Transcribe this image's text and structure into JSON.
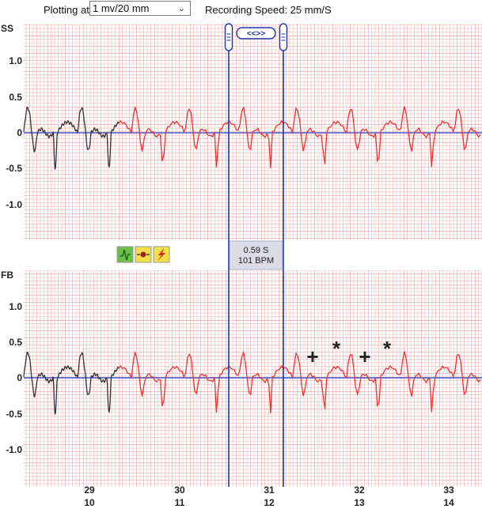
{
  "toolbar": {
    "plotting_label": "Plotting at:",
    "plotting_value": "1 mv/20 mm",
    "speed_label": "Recording Speed: 25 mm/S"
  },
  "leads": [
    {
      "name": "SS",
      "ticks": [
        "1.0",
        "0.5",
        "0",
        "-0.5",
        "-1.0"
      ]
    },
    {
      "name": "FB",
      "ticks": [
        "1.0",
        "0.5",
        "0",
        "-0.5",
        "-1.0"
      ]
    }
  ],
  "caliper": {
    "button_label": "<<>>",
    "interval": "0.59 S",
    "rate": "101 BPM"
  },
  "time_axis": {
    "seconds": [
      "29",
      "30",
      "31",
      "32",
      "33"
    ],
    "beats": [
      "10",
      "11",
      "12",
      "13",
      "14"
    ]
  },
  "annotations": [
    "+",
    "*",
    "+",
    "*"
  ],
  "colors": {
    "grid_minor": "#f5c4c4",
    "grid_major": "#e89090",
    "trace_active": "#ee3333",
    "trace_past": "#333333",
    "baseline": "#2233cc",
    "caliper": "#2233aa",
    "measure_bg": "#dcdce8"
  },
  "toolbar_icons": [
    "ecg-tool-icon",
    "record-tool-icon",
    "lightning-tool-icon"
  ]
}
